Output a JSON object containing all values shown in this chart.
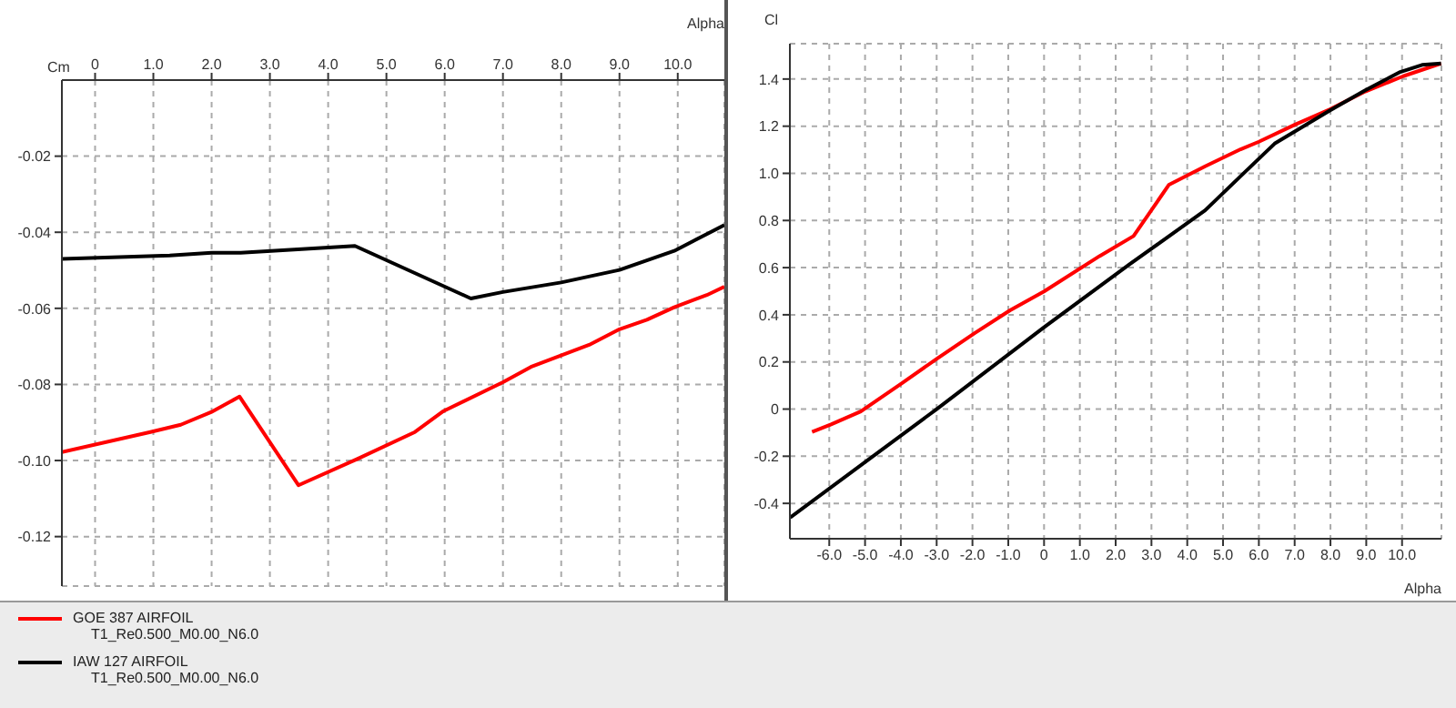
{
  "chart_data": [
    {
      "type": "line",
      "xlabel": "Alpha",
      "ylabel": "Cm",
      "xlim": [
        -0.57,
        10.8
      ],
      "ylim": [
        -0.133,
        0
      ],
      "xticks": [
        0,
        {
          "value": 1,
          "label": "1.0"
        },
        {
          "value": 2,
          "label": "2.0"
        },
        {
          "value": 3,
          "label": "3.0"
        },
        {
          "value": 4,
          "label": "4.0"
        },
        {
          "value": 5,
          "label": "5.0"
        },
        {
          "value": 6,
          "label": "6.0"
        },
        {
          "value": 7,
          "label": "7.0"
        },
        {
          "value": 8,
          "label": "8.0"
        },
        {
          "value": 9,
          "label": "9.0"
        },
        {
          "value": 10,
          "label": "10.0"
        }
      ],
      "yticks": [
        -0.02,
        -0.04,
        -0.06,
        -0.08,
        {
          "value": -0.1,
          "label": "-0.10"
        },
        -0.12
      ],
      "grid": true,
      "legend": "bottom",
      "marker": "none",
      "line_style": "solid",
      "annotations": [
        "T1_Re0.500_M0.00_N6.0",
        "T1_Re0.500_M0.00_N6.0"
      ],
      "series": [
        {
          "name": "GOE 387 AIRFOIL",
          "color": "#ff0000",
          "x": [
            -0.57,
            0.95,
            1.47,
            1.99,
            2.48,
            3.49,
            4.5,
            5.49,
            5.98,
            7.0,
            7.48,
            8.48,
            9.0,
            9.47,
            9.94,
            10.5,
            10.8
          ],
          "values": [
            -0.0978,
            -0.0925,
            -0.0906,
            -0.0873,
            -0.0832,
            -0.1065,
            -0.0996,
            -0.0925,
            -0.087,
            -0.0794,
            -0.0754,
            -0.0696,
            -0.0655,
            -0.063,
            -0.0597,
            -0.0565,
            -0.0543
          ]
        },
        {
          "name": "IAW 127 AIRFOIL",
          "color": "#000000",
          "x": [
            -0.57,
            1.28,
            2.0,
            2.5,
            4.46,
            6.45,
            7.0,
            8.0,
            9.0,
            9.94,
            10.8
          ],
          "values": [
            -0.047,
            -0.0461,
            -0.0454,
            -0.0454,
            -0.0436,
            -0.0574,
            -0.0557,
            -0.0532,
            -0.0499,
            -0.0449,
            -0.0381
          ]
        }
      ]
    },
    {
      "type": "line",
      "xlabel": "Alpha",
      "ylabel": "Cl",
      "xlim": [
        -7.1,
        11.1
      ],
      "ylim": [
        -0.55,
        1.55
      ],
      "xticks": [
        {
          "value": -6,
          "label": "-6.0"
        },
        {
          "value": -5,
          "label": "-5.0"
        },
        {
          "value": -4,
          "label": "-4.0"
        },
        {
          "value": -3,
          "label": "-3.0"
        },
        {
          "value": -2,
          "label": "-2.0"
        },
        {
          "value": -1,
          "label": "-1.0"
        },
        0,
        {
          "value": 1,
          "label": "1.0"
        },
        {
          "value": 2,
          "label": "2.0"
        },
        {
          "value": 3,
          "label": "3.0"
        },
        {
          "value": 4,
          "label": "4.0"
        },
        {
          "value": 5,
          "label": "5.0"
        },
        {
          "value": 6,
          "label": "6.0"
        },
        {
          "value": 7,
          "label": "7.0"
        },
        {
          "value": 8,
          "label": "8.0"
        },
        {
          "value": 9,
          "label": "9.0"
        },
        {
          "value": 10,
          "label": "10.0"
        }
      ],
      "yticks": [
        -0.4,
        -0.2,
        0,
        0.2,
        0.4,
        0.6,
        0.8,
        {
          "value": 1,
          "label": "1.0"
        },
        1.2,
        1.4
      ],
      "grid": true,
      "marker": "none",
      "line_style": "solid",
      "series": [
        {
          "color": "#ff0000",
          "x": [
            -6.48,
            -5.95,
            -5.12,
            -3.98,
            -3.0,
            -1.94,
            -0.95,
            0,
            1.55,
            2.5,
            3.49,
            4.5,
            5.49,
            6.0,
            7.0,
            7.99,
            8.97,
            10.03,
            11.09
          ],
          "values": [
            -0.097,
            -0.065,
            -0.01,
            0.109,
            0.213,
            0.322,
            0.419,
            0.499,
            0.649,
            0.734,
            0.952,
            1.03,
            1.102,
            1.134,
            1.206,
            1.272,
            1.347,
            1.412,
            1.466
          ]
        },
        {
          "color": "#000000",
          "x": [
            -7.09,
            -3.0,
            0,
            2.38,
            4.5,
            5.49,
            6.44,
            7.99,
            8.97,
            9.95,
            10.56,
            11.09
          ],
          "values": [
            -0.46,
            0.0,
            0.347,
            0.613,
            0.843,
            0.988,
            1.126,
            1.267,
            1.352,
            1.43,
            1.46,
            1.466
          ]
        }
      ]
    }
  ]
}
